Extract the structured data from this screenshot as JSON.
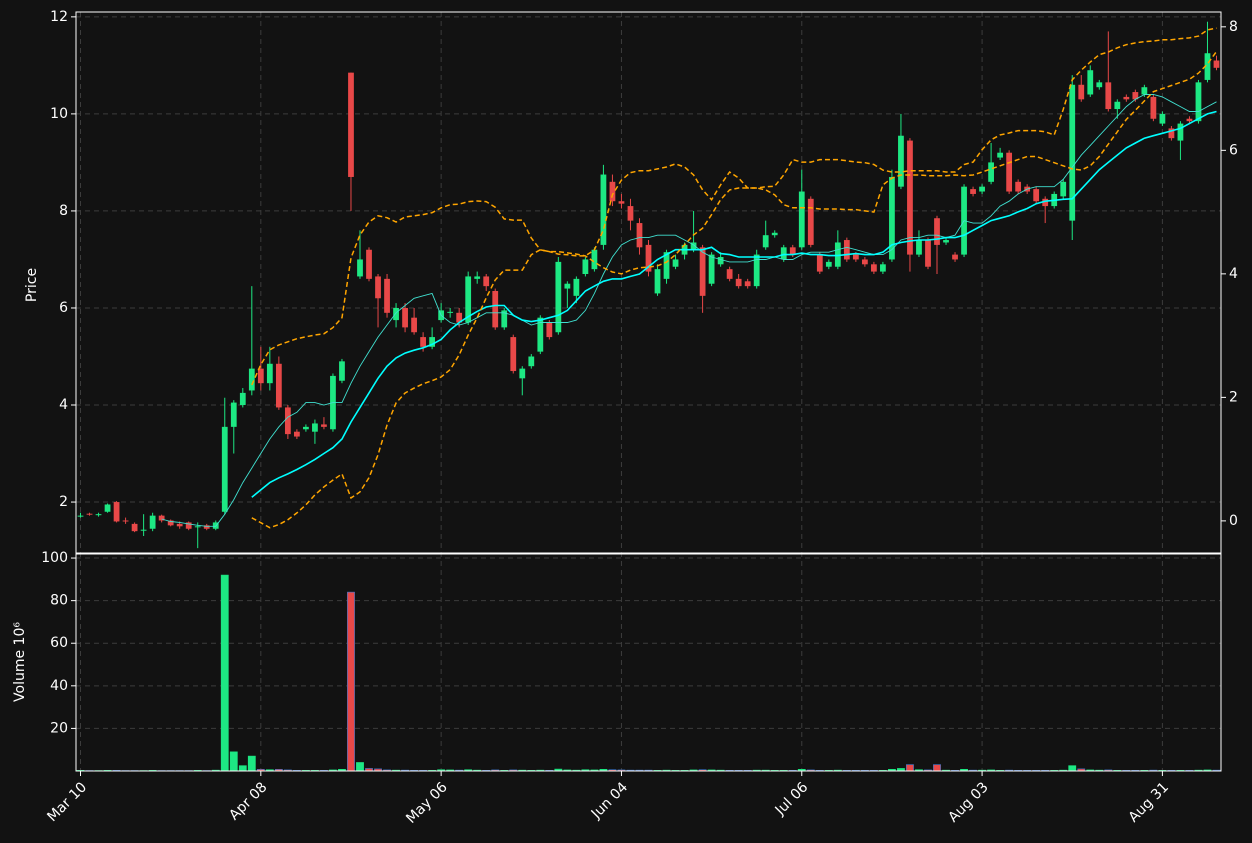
{
  "chart_data": {
    "type": "candlestick",
    "ylabel": "Price",
    "volume_ylabel": "Volume  10⁶",
    "grid": true,
    "up_color": "#1de883",
    "down_color": "#e84848",
    "categories": [
      "Mar 10",
      null,
      null,
      null,
      null,
      null,
      null,
      null,
      null,
      null,
      null,
      null,
      null,
      null,
      null,
      null,
      null,
      null,
      null,
      null,
      "Apr 08",
      null,
      null,
      null,
      null,
      null,
      null,
      null,
      null,
      null,
      null,
      null,
      null,
      null,
      null,
      null,
      null,
      null,
      null,
      null,
      "May 06",
      null,
      null,
      null,
      null,
      null,
      null,
      null,
      null,
      null,
      null,
      null,
      null,
      null,
      null,
      null,
      null,
      null,
      null,
      null,
      "Jun 04",
      null,
      null,
      null,
      null,
      null,
      null,
      null,
      null,
      null,
      null,
      null,
      null,
      null,
      null,
      null,
      null,
      null,
      null,
      null,
      "Jul 06",
      null,
      null,
      null,
      null,
      null,
      null,
      null,
      null,
      null,
      null,
      null,
      null,
      null,
      null,
      null,
      null,
      null,
      null,
      null,
      "Aug 03",
      null,
      null,
      null,
      null,
      null,
      null,
      null,
      null,
      null,
      null,
      null,
      null,
      null,
      null,
      null,
      null,
      null,
      null,
      null,
      "Aug 31",
      null,
      null,
      null,
      null,
      null,
      null
    ],
    "open": [
      1.7,
      1.76,
      1.73,
      1.8,
      2.0,
      1.62,
      1.55,
      1.42,
      1.45,
      1.72,
      1.62,
      1.55,
      1.58,
      1.5,
      1.52,
      1.45,
      1.8,
      3.55,
      4.0,
      4.3,
      4.75,
      4.45,
      4.85,
      3.95,
      3.45,
      3.5,
      3.45,
      3.6,
      3.5,
      4.5,
      10.85,
      6.65,
      7.2,
      6.65,
      6.6,
      5.75,
      6.0,
      5.8,
      5.4,
      5.2,
      5.75,
      5.9,
      5.9,
      5.7,
      6.6,
      6.65,
      6.35,
      5.6,
      5.4,
      4.55,
      4.8,
      5.1,
      5.7,
      5.5,
      6.4,
      6.25,
      6.7,
      6.8,
      7.3,
      8.6,
      8.2,
      8.1,
      7.75,
      7.3,
      6.3,
      6.6,
      6.85,
      7.1,
      7.2,
      7.25,
      6.5,
      6.9,
      6.8,
      6.6,
      6.55,
      6.45,
      7.25,
      7.5,
      7.0,
      7.25,
      7.25,
      8.25,
      7.1,
      6.85,
      6.85,
      7.4,
      7.1,
      7.0,
      6.9,
      6.75,
      7.0,
      8.5,
      9.45,
      7.1,
      7.4,
      7.85,
      7.35,
      7.1,
      7.1,
      8.45,
      8.4,
      8.6,
      9.1,
      9.2,
      8.6,
      8.5,
      8.45,
      8.25,
      8.1,
      8.3,
      7.8,
      10.6,
      10.4,
      10.55,
      10.65,
      10.1,
      10.35,
      10.45,
      10.4,
      10.35,
      9.8,
      9.7,
      9.45,
      9.9,
      9.85,
      10.7,
      11.1
    ],
    "high": [
      1.78,
      1.78,
      1.78,
      1.97,
      2.02,
      1.68,
      1.58,
      1.75,
      1.78,
      1.74,
      1.64,
      1.6,
      1.6,
      1.58,
      1.55,
      1.62,
      4.15,
      4.1,
      4.35,
      6.45,
      5.2,
      5.2,
      5.0,
      4.0,
      3.5,
      3.6,
      3.7,
      3.75,
      4.65,
      4.95,
      10.85,
      7.6,
      7.25,
      6.7,
      6.7,
      6.1,
      6.1,
      6.0,
      5.5,
      5.6,
      6.1,
      6.0,
      6.0,
      6.75,
      6.75,
      6.7,
      6.4,
      6.0,
      5.45,
      4.8,
      5.05,
      5.85,
      5.75,
      7.05,
      6.55,
      6.65,
      7.05,
      7.25,
      8.95,
      8.75,
      8.35,
      8.25,
      7.85,
      7.4,
      6.9,
      7.2,
      7.1,
      7.35,
      8.0,
      7.3,
      7.15,
      7.15,
      6.85,
      6.7,
      6.6,
      7.2,
      7.8,
      7.6,
      7.3,
      7.3,
      8.85,
      8.3,
      7.15,
      7.0,
      7.6,
      7.45,
      7.15,
      7.05,
      6.95,
      6.95,
      8.85,
      10.0,
      9.5,
      7.6,
      7.45,
      7.9,
      7.45,
      7.15,
      8.55,
      8.5,
      8.55,
      9.4,
      9.3,
      9.25,
      8.65,
      8.55,
      8.5,
      8.3,
      8.4,
      8.65,
      10.8,
      10.8,
      11.0,
      10.7,
      11.7,
      10.3,
      10.4,
      10.5,
      10.6,
      10.4,
      10.05,
      9.75,
      9.85,
      9.95,
      10.7,
      11.9,
      11.2
    ],
    "low": [
      1.68,
      1.72,
      1.7,
      1.78,
      1.58,
      1.55,
      1.38,
      1.3,
      1.4,
      1.58,
      1.5,
      1.45,
      1.42,
      1.05,
      1.42,
      1.42,
      1.75,
      3.0,
      3.95,
      4.2,
      4.3,
      4.3,
      3.9,
      3.3,
      3.3,
      3.45,
      3.2,
      3.5,
      3.45,
      4.45,
      8.0,
      6.6,
      6.55,
      5.6,
      5.8,
      5.6,
      5.5,
      5.45,
      5.1,
      5.15,
      5.7,
      5.8,
      5.6,
      5.65,
      6.5,
      6.35,
      5.55,
      5.55,
      4.65,
      4.2,
      4.75,
      5.05,
      5.35,
      5.45,
      6.0,
      6.1,
      6.65,
      6.75,
      7.2,
      8.1,
      8.05,
      7.6,
      7.1,
      6.65,
      6.25,
      6.5,
      6.8,
      7.0,
      7.15,
      5.9,
      6.45,
      6.85,
      6.55,
      6.4,
      6.4,
      6.4,
      7.2,
      7.45,
      6.95,
      7.05,
      7.2,
      7.25,
      6.7,
      6.8,
      6.8,
      6.95,
      6.95,
      6.85,
      6.7,
      6.7,
      6.95,
      8.45,
      6.75,
      7.05,
      6.8,
      6.7,
      7.3,
      6.95,
      7.05,
      8.3,
      8.35,
      8.55,
      9.05,
      8.35,
      8.35,
      8.35,
      8.15,
      7.75,
      8.05,
      8.25,
      7.4,
      10.25,
      10.35,
      10.5,
      10.05,
      9.9,
      10.25,
      10.25,
      10.35,
      9.85,
      9.75,
      9.45,
      9.05,
      9.8,
      9.8,
      10.65,
      10.9
    ],
    "close": [
      1.72,
      1.75,
      1.75,
      1.95,
      1.6,
      1.6,
      1.4,
      1.43,
      1.72,
      1.62,
      1.52,
      1.5,
      1.45,
      1.5,
      1.45,
      1.58,
      3.55,
      4.05,
      4.25,
      4.75,
      4.45,
      4.85,
      3.95,
      3.4,
      3.35,
      3.55,
      3.62,
      3.55,
      4.6,
      4.9,
      8.7,
      7.0,
      6.6,
      6.2,
      5.9,
      6.0,
      5.6,
      5.5,
      5.2,
      5.4,
      5.95,
      5.92,
      5.7,
      6.65,
      6.65,
      6.45,
      5.6,
      5.95,
      4.7,
      4.75,
      5.0,
      5.8,
      5.4,
      6.95,
      6.5,
      6.6,
      7.0,
      7.2,
      8.75,
      8.2,
      8.15,
      7.8,
      7.25,
      6.75,
      6.8,
      7.15,
      7.0,
      7.3,
      7.35,
      6.25,
      7.1,
      7.05,
      6.6,
      6.45,
      6.45,
      7.1,
      7.5,
      7.55,
      7.25,
      7.1,
      8.4,
      7.3,
      6.75,
      6.95,
      7.35,
      7.0,
      7.0,
      6.9,
      6.75,
      6.9,
      8.7,
      9.55,
      7.1,
      7.4,
      6.85,
      7.3,
      7.4,
      7.0,
      8.5,
      8.35,
      8.5,
      9.0,
      9.2,
      8.4,
      8.4,
      8.4,
      8.2,
      8.1,
      8.35,
      8.6,
      10.6,
      10.3,
      10.9,
      10.65,
      10.1,
      10.25,
      10.3,
      10.3,
      10.55,
      9.9,
      10.0,
      9.5,
      9.8,
      9.85,
      10.65,
      11.25,
      10.95
    ],
    "volume": [
      0.3,
      0.2,
      0.2,
      0.3,
      0.3,
      0.2,
      0.2,
      0.2,
      0.3,
      0.2,
      0.2,
      0.2,
      0.2,
      0.3,
      0.2,
      0.4,
      92,
      9,
      2.5,
      7,
      0.8,
      0.6,
      0.8,
      0.5,
      0.3,
      0.3,
      0.3,
      0.3,
      0.5,
      0.8,
      84,
      4,
      1.2,
      1.0,
      0.5,
      0.4,
      0.4,
      0.3,
      0.3,
      0.3,
      0.6,
      0.5,
      0.4,
      0.6,
      0.4,
      0.3,
      0.5,
      0.3,
      0.5,
      0.4,
      0.3,
      0.4,
      0.3,
      0.9,
      0.5,
      0.4,
      0.6,
      0.5,
      0.8,
      0.6,
      0.5,
      0.4,
      0.4,
      0.4,
      0.3,
      0.4,
      0.3,
      0.3,
      0.5,
      0.6,
      0.5,
      0.4,
      0.3,
      0.3,
      0.3,
      0.4,
      0.4,
      0.3,
      0.3,
      0.3,
      0.8,
      0.5,
      0.3,
      0.3,
      0.4,
      0.3,
      0.3,
      0.3,
      0.3,
      0.3,
      0.8,
      1.2,
      3,
      0.6,
      0.5,
      3,
      0.4,
      0.3,
      0.8,
      0.4,
      0.4,
      0.5,
      0.3,
      0.4,
      0.3,
      0.3,
      0.3,
      0.3,
      0.3,
      0.4,
      2.5,
      1.0,
      0.5,
      0.4,
      0.5,
      0.3,
      0.3,
      0.3,
      0.3,
      0.4,
      0.3,
      0.3,
      0.3,
      0.3,
      0.4,
      0.5,
      0.4
    ],
    "ylim": [
      0.95,
      12.1
    ],
    "yticks": [
      2,
      4,
      6,
      8,
      10,
      12
    ],
    "y2lim": [
      -0.52,
      8.24
    ],
    "y2ticks": [
      0,
      2,
      4,
      6,
      8
    ],
    "volume_ylim": [
      0,
      101.9
    ],
    "volume_yticks": [
      20,
      40,
      60,
      80,
      100
    ],
    "series": [
      {
        "color": "#40e0d0",
        "linestyle": "solid",
        "values": [
          null,
          null,
          null,
          null,
          null,
          null,
          null,
          null,
          null,
          1.65,
          1.6,
          1.58,
          1.55,
          1.52,
          1.5,
          1.5,
          1.75,
          2.05,
          2.4,
          2.7,
          3.0,
          3.3,
          3.55,
          3.75,
          3.85,
          4.05,
          4.05,
          4.0,
          4.05,
          4.05,
          4.45,
          4.8,
          5.1,
          5.4,
          5.65,
          5.9,
          6.05,
          6.2,
          6.25,
          6.3,
          5.85,
          5.7,
          5.65,
          5.7,
          5.8,
          5.9,
          5.9,
          5.9,
          5.85,
          5.75,
          5.65,
          5.7,
          5.7,
          5.7,
          5.7,
          5.75,
          5.95,
          6.3,
          6.7,
          7.05,
          7.3,
          7.4,
          7.45,
          7.45,
          7.5,
          7.5,
          7.5,
          7.4,
          7.3,
          7.15,
          7.05,
          7.0,
          6.95,
          6.95,
          6.95,
          7.0,
          7.0,
          7.05,
          7.0,
          7.0,
          7.1,
          7.15,
          7.15,
          7.15,
          7.2,
          7.25,
          7.2,
          7.15,
          7.1,
          7.1,
          7.2,
          7.4,
          7.45,
          7.45,
          7.5,
          7.5,
          7.45,
          7.5,
          7.8,
          7.75,
          7.75,
          7.9,
          8.1,
          8.2,
          8.35,
          8.45,
          8.5,
          8.5,
          8.5,
          8.65,
          8.9,
          9.15,
          9.35,
          9.55,
          9.75,
          9.95,
          10.15,
          10.3,
          10.4,
          10.4,
          10.35,
          10.25,
          10.15,
          10.05,
          10.05,
          10.15,
          10.25
        ]
      },
      {
        "color": "#00ffff",
        "linestyle": "solid",
        "values": [
          null,
          null,
          null,
          null,
          null,
          null,
          null,
          null,
          null,
          null,
          null,
          null,
          null,
          null,
          null,
          null,
          null,
          null,
          null,
          2.1,
          2.25,
          2.4,
          2.5,
          2.58,
          2.67,
          2.77,
          2.88,
          3.0,
          3.12,
          3.3,
          3.65,
          3.95,
          4.25,
          4.55,
          4.8,
          4.97,
          5.07,
          5.13,
          5.18,
          5.25,
          5.35,
          5.55,
          5.7,
          5.82,
          5.93,
          6.02,
          6.05,
          6.05,
          5.85,
          5.75,
          5.72,
          5.75,
          5.8,
          5.85,
          5.95,
          6.15,
          6.35,
          6.45,
          6.55,
          6.6,
          6.6,
          6.65,
          6.7,
          6.85,
          7.0,
          7.1,
          7.2,
          7.2,
          7.2,
          7.2,
          7.25,
          7.12,
          7.1,
          7.05,
          7.05,
          7.05,
          7.05,
          7.05,
          7.1,
          7.1,
          7.13,
          7.1,
          7.1,
          7.08,
          7.08,
          7.1,
          7.12,
          7.1,
          7.1,
          7.15,
          7.3,
          7.35,
          7.38,
          7.4,
          7.4,
          7.42,
          7.45,
          7.45,
          7.5,
          7.6,
          7.7,
          7.8,
          7.85,
          7.9,
          7.98,
          8.05,
          8.15,
          8.2,
          8.22,
          8.24,
          8.25,
          8.45,
          8.65,
          8.85,
          9.0,
          9.15,
          9.3,
          9.4,
          9.5,
          9.55,
          9.6,
          9.65,
          9.7,
          9.8,
          9.9,
          10.0,
          10.05
        ]
      },
      {
        "color": "#ffa500",
        "linestyle": "dashed",
        "axis": "y2",
        "values": [
          null,
          null,
          null,
          null,
          null,
          null,
          null,
          null,
          null,
          null,
          null,
          null,
          null,
          null,
          null,
          null,
          null,
          null,
          null,
          2.2,
          2.53,
          2.77,
          2.85,
          2.9,
          2.95,
          2.98,
          3.01,
          3.03,
          3.13,
          3.29,
          4.26,
          4.63,
          4.84,
          4.94,
          4.91,
          4.84,
          4.92,
          4.94,
          4.96,
          4.99,
          5.07,
          5.12,
          5.13,
          5.17,
          5.18,
          5.17,
          5.08,
          4.89,
          4.87,
          4.87,
          4.58,
          4.39,
          4.36,
          4.32,
          4.31,
          4.29,
          4.29,
          4.39,
          4.71,
          5.28,
          5.52,
          5.64,
          5.67,
          5.67,
          5.7,
          5.73,
          5.78,
          5.73,
          5.6,
          5.36,
          5.2,
          5.44,
          5.65,
          5.55,
          5.39,
          5.39,
          5.41,
          5.42,
          5.6,
          5.85,
          5.81,
          5.81,
          5.85,
          5.85,
          5.85,
          5.83,
          5.81,
          5.8,
          5.77,
          5.68,
          5.65,
          5.65,
          5.67,
          5.67,
          5.67,
          5.67,
          5.65,
          5.65,
          5.77,
          5.81,
          6.01,
          6.17,
          6.25,
          6.28,
          6.32,
          6.32,
          6.32,
          6.3,
          6.25,
          6.66,
          7.14,
          7.3,
          7.43,
          7.55,
          7.59,
          7.66,
          7.71,
          7.74,
          7.76,
          7.77,
          7.79,
          7.79,
          7.81,
          7.82,
          7.85,
          7.95,
          7.98
        ]
      },
      {
        "color": "#ffa500",
        "linestyle": "dashed",
        "axis": "y2",
        "values": [
          null,
          null,
          null,
          null,
          null,
          null,
          null,
          null,
          null,
          null,
          null,
          null,
          null,
          null,
          null,
          null,
          null,
          null,
          null,
          0.05,
          -0.03,
          -0.11,
          -0.06,
          0.02,
          0.13,
          0.26,
          0.42,
          0.55,
          0.66,
          0.76,
          0.37,
          0.47,
          0.7,
          1.07,
          1.55,
          1.91,
          2.07,
          2.15,
          2.22,
          2.27,
          2.33,
          2.45,
          2.69,
          3.01,
          3.29,
          3.61,
          3.9,
          4.06,
          4.06,
          4.06,
          4.31,
          4.39,
          4.36,
          4.36,
          4.34,
          4.32,
          4.29,
          4.19,
          4.1,
          4.03,
          4.0,
          4.06,
          4.1,
          4.11,
          4.13,
          4.19,
          4.31,
          4.47,
          4.63,
          4.74,
          4.96,
          5.2,
          5.36,
          5.39,
          5.39,
          5.39,
          5.36,
          5.28,
          5.12,
          5.07,
          5.07,
          5.07,
          5.05,
          5.05,
          5.05,
          5.04,
          5.04,
          5.02,
          5.0,
          5.44,
          5.55,
          5.6,
          5.6,
          5.6,
          5.59,
          5.59,
          5.59,
          5.6,
          5.59,
          5.6,
          5.65,
          5.7,
          5.75,
          5.8,
          5.85,
          5.9,
          5.9,
          5.85,
          5.8,
          5.75,
          5.7,
          5.68,
          5.75,
          5.9,
          6.1,
          6.3,
          6.5,
          6.65,
          6.8,
          6.95,
          7.0,
          7.05,
          7.1,
          7.15,
          7.25,
          7.4,
          7.6
        ]
      }
    ]
  }
}
